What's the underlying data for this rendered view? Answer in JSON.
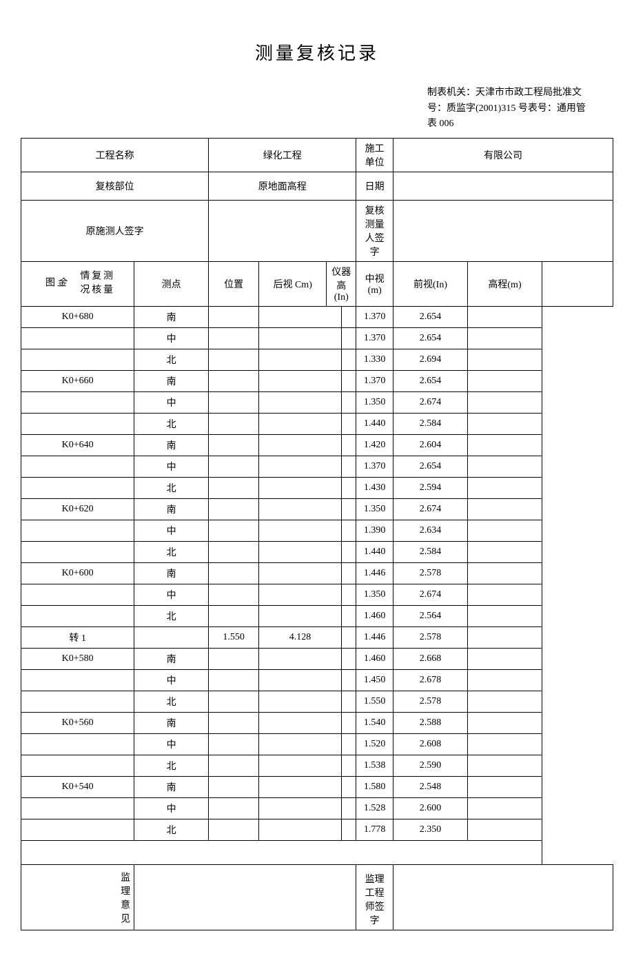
{
  "title": "测量复核记录",
  "meta": {
    "line1": "制表机关：天津市市政工程局批准文",
    "line2": "号：质监字(2001)315 号表号：通用管",
    "line3": "表 006"
  },
  "header": {
    "project_name_label": "工程名称",
    "project_name_value": "绿化工程",
    "construction_unit_label": "施工单位",
    "construction_unit_value": "有限公司",
    "review_part_label": "复核部位",
    "review_part_value": "原地面高程",
    "date_label": "日期",
    "date_value": "",
    "original_surveyor_label": "原施测人签字",
    "review_surveyor_label": "复核测量人签字"
  },
  "side_label": {
    "main_top": "测量复核情况",
    "main_bottom_1": "金",
    "main_bottom_2": "图",
    "supervisor": "监理意见"
  },
  "columns": {
    "c1": "测点",
    "c2": "位置",
    "c3": "后视 Cm)",
    "c4": "仪器高(In)",
    "c5": "中视(m)",
    "c6": "前视(In)",
    "c7": "高程(m)",
    "c8": ""
  },
  "rows": [
    {
      "p": "K0+680",
      "pos": "南",
      "bs": "",
      "ih": "",
      "ms": "",
      "fs": "1.370",
      "el": "2.654"
    },
    {
      "p": "",
      "pos": "中",
      "bs": "",
      "ih": "",
      "ms": "",
      "fs": "1.370",
      "el": "2.654"
    },
    {
      "p": "",
      "pos": "北",
      "bs": "",
      "ih": "",
      "ms": "",
      "fs": "1.330",
      "el": "2.694"
    },
    {
      "p": "K0+660",
      "pos": "南",
      "bs": "",
      "ih": "",
      "ms": "",
      "fs": "1.370",
      "el": "2.654"
    },
    {
      "p": "",
      "pos": "中",
      "bs": "",
      "ih": "",
      "ms": "",
      "fs": "1.350",
      "el": "2.674"
    },
    {
      "p": "",
      "pos": "北",
      "bs": "",
      "ih": "",
      "ms": "",
      "fs": "1.440",
      "el": "2.584"
    },
    {
      "p": "K0+640",
      "pos": "南",
      "bs": "",
      "ih": "",
      "ms": "",
      "fs": "1.420",
      "el": "2.604"
    },
    {
      "p": "",
      "pos": "中",
      "bs": "",
      "ih": "",
      "ms": "",
      "fs": "1.370",
      "el": "2.654"
    },
    {
      "p": "",
      "pos": "北",
      "bs": "",
      "ih": "",
      "ms": "",
      "fs": "1.430",
      "el": "2.594"
    },
    {
      "p": "K0+620",
      "pos": "南",
      "bs": "",
      "ih": "",
      "ms": "",
      "fs": "1.350",
      "el": "2.674"
    },
    {
      "p": "",
      "pos": "中",
      "bs": "",
      "ih": "",
      "ms": "",
      "fs": "1.390",
      "el": "2.634"
    },
    {
      "p": "",
      "pos": "北",
      "bs": "",
      "ih": "",
      "ms": "",
      "fs": "1.440",
      "el": "2.584"
    },
    {
      "p": "K0+600",
      "pos": "南",
      "bs": "",
      "ih": "",
      "ms": "",
      "fs": "1.446",
      "el": "2.578"
    },
    {
      "p": "",
      "pos": "中",
      "bs": "",
      "ih": "",
      "ms": "",
      "fs": "1.350",
      "el": "2.674"
    },
    {
      "p": "",
      "pos": "北",
      "bs": "",
      "ih": "",
      "ms": "",
      "fs": "1.460",
      "el": "2.564"
    },
    {
      "p": "转 1",
      "pos": "",
      "bs": "1.550",
      "ih": "4.128",
      "ms": "",
      "fs": "1.446",
      "el": "2.578"
    },
    {
      "p": "K0+580",
      "pos": "南",
      "bs": "",
      "ih": "",
      "ms": "",
      "fs": "1.460",
      "el": "2.668"
    },
    {
      "p": "",
      "pos": "中",
      "bs": "",
      "ih": "",
      "ms": "",
      "fs": "1.450",
      "el": "2.678"
    },
    {
      "p": "",
      "pos": "北",
      "bs": "",
      "ih": "",
      "ms": "",
      "fs": "1.550",
      "el": "2.578"
    },
    {
      "p": "K0+560",
      "pos": "南",
      "bs": "",
      "ih": "",
      "ms": "",
      "fs": "1.540",
      "el": "2.588"
    },
    {
      "p": "",
      "pos": "中",
      "bs": "",
      "ih": "",
      "ms": "",
      "fs": "1.520",
      "el": "2.608"
    },
    {
      "p": "",
      "pos": "北",
      "bs": "",
      "ih": "",
      "ms": "",
      "fs": "1.538",
      "el": "2.590"
    },
    {
      "p": "K0+540",
      "pos": "南",
      "bs": "",
      "ih": "",
      "ms": "",
      "fs": "1.580",
      "el": "2.548"
    },
    {
      "p": "",
      "pos": "中",
      "bs": "",
      "ih": "",
      "ms": "",
      "fs": "1.528",
      "el": "2.600"
    },
    {
      "p": "",
      "pos": "北",
      "bs": "",
      "ih": "",
      "ms": "",
      "fs": "1.778",
      "el": "2.350"
    }
  ],
  "footer": {
    "engineer_sign_label": "监理工程师签字"
  }
}
